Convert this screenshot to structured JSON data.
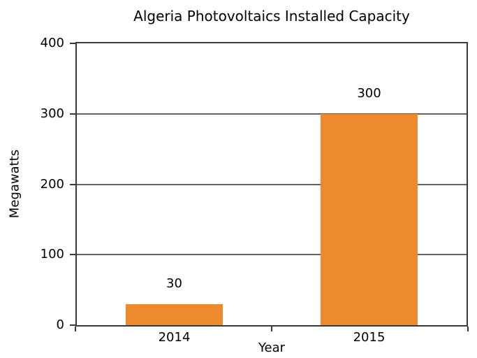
{
  "chart_data": {
    "type": "bar",
    "title": "Algeria Photovoltaics Installed Capacity",
    "xlabel": "Year",
    "ylabel": "Megawatts",
    "categories": [
      "2014",
      "2015"
    ],
    "values": [
      30,
      300
    ],
    "yticks": [
      0,
      100,
      200,
      300,
      400
    ],
    "ylim": [
      0,
      400
    ],
    "grid": true,
    "grid_axis": "y",
    "legend": false,
    "bar_color": "#EE8A2E",
    "axis_color": "#3a3a3a",
    "grid_color": "#636363",
    "text_color": "#000000",
    "background_color": "#ffffff"
  }
}
